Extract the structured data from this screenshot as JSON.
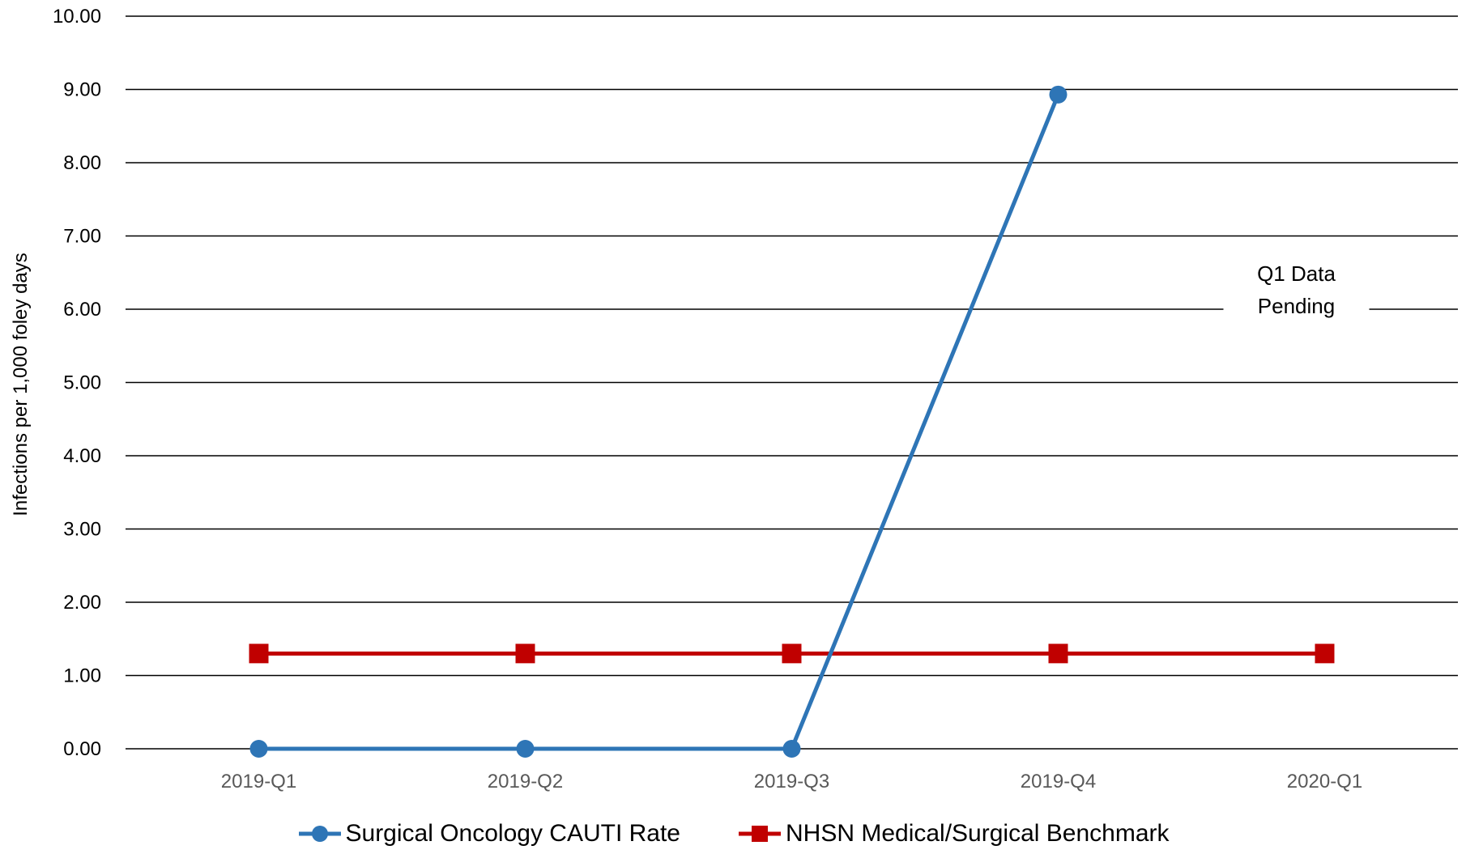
{
  "chart_data": {
    "type": "line",
    "categories": [
      "2019-Q1",
      "2019-Q2",
      "2019-Q3",
      "2019-Q4",
      "2020-Q1"
    ],
    "series": [
      {
        "name": "Surgical Oncology CAUTI Rate",
        "values": [
          0.0,
          0.0,
          0.0,
          8.93,
          null
        ],
        "color": "#2E75B6",
        "marker": "circle"
      },
      {
        "name": "NHSN Medical/Surgical Benchmark",
        "values": [
          1.3,
          1.3,
          1.3,
          1.3,
          1.3
        ],
        "color": "#C00000",
        "marker": "square"
      }
    ],
    "ylabel": "Infections per 1,000 foley days",
    "xlabel": "",
    "ylim": [
      0,
      10
    ],
    "yticks": [
      "0.00",
      "1.00",
      "2.00",
      "3.00",
      "4.00",
      "5.00",
      "6.00",
      "7.00",
      "8.00",
      "9.00",
      "10.00"
    ],
    "grid": true,
    "legend_position": "bottom",
    "annotation": {
      "lines": [
        "Q1 Data",
        "Pending"
      ],
      "category": "2020-Q1",
      "y": 6.3
    }
  }
}
